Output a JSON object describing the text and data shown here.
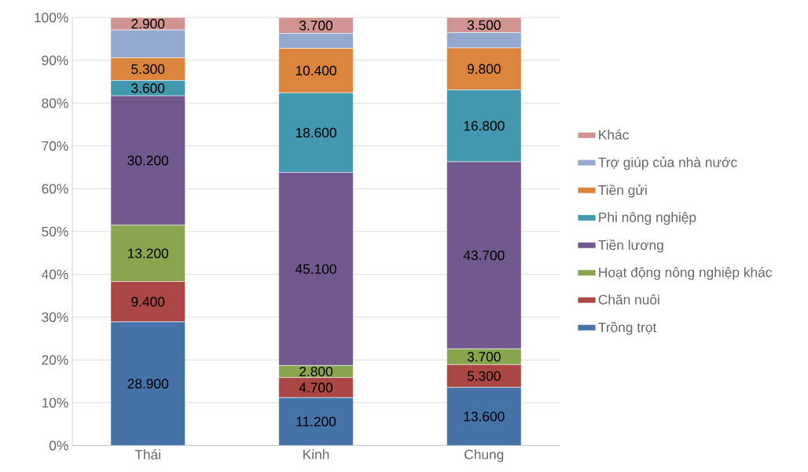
{
  "chart_data": {
    "type": "bar",
    "stacked": true,
    "categories": [
      "Thái",
      "Kinh",
      "Chung"
    ],
    "series": [
      {
        "name": "Trồng trọt",
        "color": "#4572a7",
        "values": [
          28.9,
          11.2,
          13.6
        ],
        "value_labels": [
          "28.900",
          "11.200",
          "13.600"
        ]
      },
      {
        "name": "Chăn nuôi",
        "color": "#aa4643",
        "values": [
          9.4,
          4.7,
          5.3
        ],
        "value_labels": [
          "9.400",
          "4.700",
          "5.300"
        ]
      },
      {
        "name": "Hoạt động nông nghiệp khác",
        "color": "#89a54e",
        "values": [
          13.2,
          2.8,
          3.7
        ],
        "value_labels": [
          "13.200",
          "2.800",
          "3.700"
        ]
      },
      {
        "name": "Tiền lương",
        "color": "#71588f",
        "values": [
          30.2,
          45.1,
          43.7
        ],
        "value_labels": [
          "30.200",
          "45.100",
          "43.700"
        ]
      },
      {
        "name": "Phi nông nghiệp",
        "color": "#4198af",
        "values": [
          3.6,
          18.6,
          16.8
        ],
        "value_labels": [
          "3.600",
          "18.600",
          "16.800"
        ]
      },
      {
        "name": "Tiền gửi",
        "color": "#db843d",
        "values": [
          5.3,
          10.4,
          9.8
        ],
        "value_labels": [
          "5.300",
          "10.400",
          "9.800"
        ]
      },
      {
        "name": "Trợ giúp của nhà nước",
        "color": "#93a9cf",
        "values": [
          6.5,
          3.5,
          3.6
        ]
      },
      {
        "name": "Khác",
        "color": "#d19392",
        "values": [
          2.9,
          3.7,
          3.5
        ],
        "value_labels": [
          "2.900",
          "3.700",
          "3.500"
        ]
      }
    ],
    "ylim": [
      0,
      100
    ],
    "yticks": [
      {
        "value": 0,
        "label": "0%"
      },
      {
        "value": 10,
        "label": "10%"
      },
      {
        "value": 20,
        "label": "20%"
      },
      {
        "value": 30,
        "label": "30%"
      },
      {
        "value": 40,
        "label": "40%"
      },
      {
        "value": 50,
        "label": "50%"
      },
      {
        "value": 60,
        "label": "60%"
      },
      {
        "value": 70,
        "label": "70%"
      },
      {
        "value": 80,
        "label": "80%"
      },
      {
        "value": 90,
        "label": "90%"
      },
      {
        "value": 100,
        "label": "100%"
      }
    ],
    "grid": "y",
    "legend": "right"
  }
}
